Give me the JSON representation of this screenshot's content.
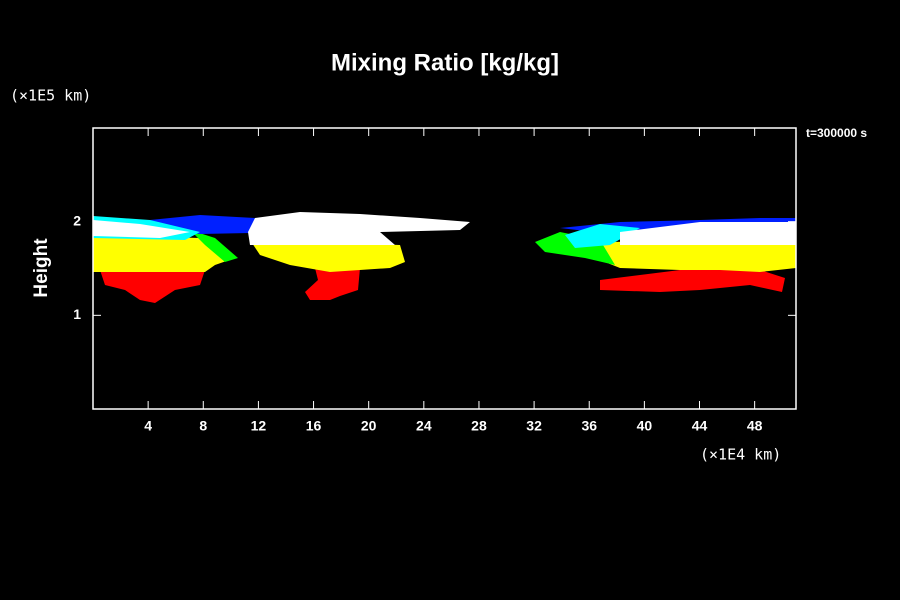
{
  "chart_data": {
    "type": "contour",
    "title": "Mixing Ratio [kg/kg]",
    "ylabel": "Height",
    "y_unit": "(×1E5 km)",
    "x_unit": "(×1E4 km)",
    "annotation": "t=300000 s",
    "xlim": [
      0,
      51
    ],
    "xticks": [
      4,
      8,
      12,
      16,
      20,
      24,
      28,
      32,
      36,
      40,
      44,
      48
    ],
    "ylim": [
      0,
      3
    ],
    "yticks": [
      1,
      2
    ]
  }
}
